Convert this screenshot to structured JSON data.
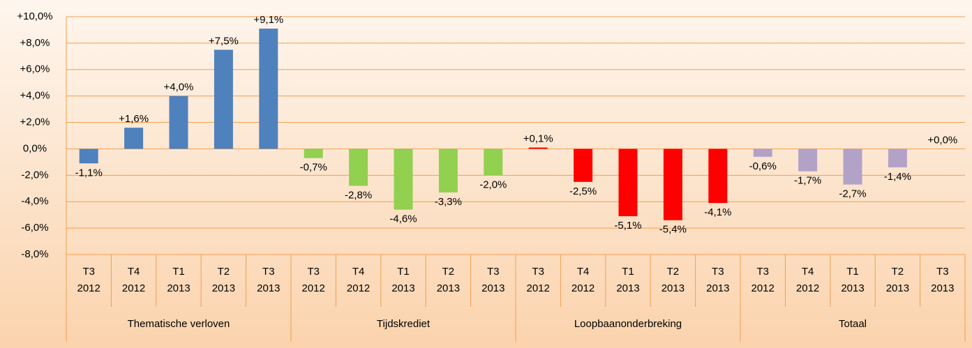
{
  "chart_data": {
    "type": "bar",
    "ylim": [
      -8,
      10
    ],
    "yticks": [
      {
        "value": -8,
        "label": "-8,0%"
      },
      {
        "value": -6,
        "label": "-6,0%"
      },
      {
        "value": -4,
        "label": "-4,0%"
      },
      {
        "value": -2,
        "label": "-2,0%"
      },
      {
        "value": 0,
        "label": "0,0%"
      },
      {
        "value": 2,
        "label": "+2,0%"
      },
      {
        "value": 4,
        "label": "+4,0%"
      },
      {
        "value": 6,
        "label": "+6,0%"
      },
      {
        "value": 8,
        "label": "+8,0%"
      },
      {
        "value": 10,
        "label": "+10,0%"
      }
    ],
    "grid": true,
    "groups": [
      {
        "label": "Thematische verloven",
        "color": "#4f81bd",
        "categories": [
          [
            "T3",
            "2012"
          ],
          [
            "T4",
            "2012"
          ],
          [
            "T1",
            "2013"
          ],
          [
            "T2",
            "2013"
          ],
          [
            "T3",
            "2013"
          ]
        ],
        "values": [
          -1.1,
          1.6,
          4.0,
          7.5,
          9.1
        ],
        "value_labels": [
          "-1,1%",
          "+1,6%",
          "+4,0%",
          "+7,5%",
          "+9,1%"
        ]
      },
      {
        "label": "Tijdskrediet",
        "color": "#92d050",
        "categories": [
          [
            "T3",
            "2012"
          ],
          [
            "T4",
            "2012"
          ],
          [
            "T1",
            "2013"
          ],
          [
            "T2",
            "2013"
          ],
          [
            "T3",
            "2013"
          ]
        ],
        "values": [
          -0.7,
          -2.8,
          -4.6,
          -3.3,
          -2.0
        ],
        "value_labels": [
          "-0,7%",
          "-2,8%",
          "-4,6%",
          "-3,3%",
          "-2,0%"
        ]
      },
      {
        "label": "Loopbaanonderbreking",
        "color": "#ff0000",
        "categories": [
          [
            "T3",
            "2012"
          ],
          [
            "T4",
            "2012"
          ],
          [
            "T1",
            "2013"
          ],
          [
            "T2",
            "2013"
          ],
          [
            "T3",
            "2013"
          ]
        ],
        "values": [
          0.1,
          -2.5,
          -5.1,
          -5.4,
          -4.1
        ],
        "value_labels": [
          "+0,1%",
          "-2,5%",
          "-5,1%",
          "-5,4%",
          "-4,1%"
        ]
      },
      {
        "label": "Totaal",
        "color": "#b3a2c7",
        "categories": [
          [
            "T3",
            "2012"
          ],
          [
            "T4",
            "2012"
          ],
          [
            "T1",
            "2013"
          ],
          [
            "T2",
            "2013"
          ],
          [
            "T3",
            "2013"
          ]
        ],
        "values": [
          -0.6,
          -1.7,
          -2.7,
          -1.4,
          0.0
        ],
        "value_labels": [
          "-0,6%",
          "-1,7%",
          "-2,7%",
          "-1,4%",
          "+0,0%"
        ]
      }
    ]
  }
}
